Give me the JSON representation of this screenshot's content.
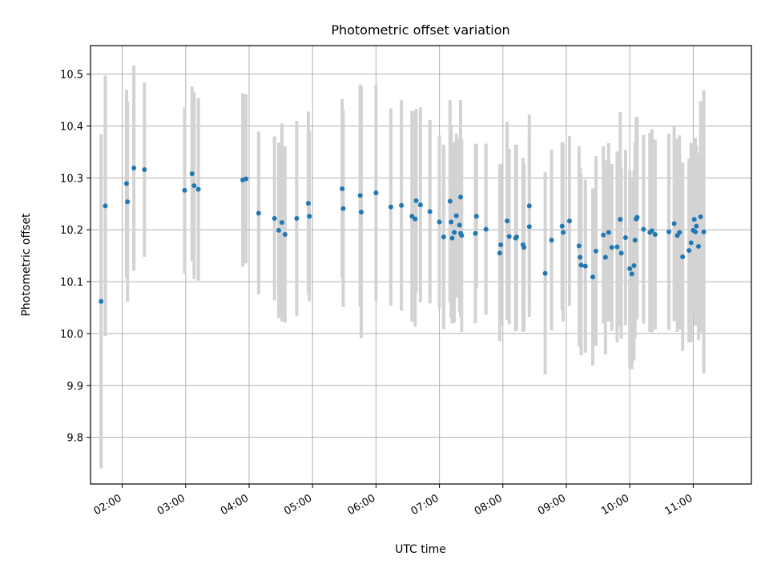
{
  "chart_data": {
    "type": "scatter",
    "title": "Photometric offset variation",
    "xlabel": "UTC time",
    "ylabel": "Photometric offset",
    "xlim": [
      "01:30",
      "11:55"
    ],
    "ylim": [
      9.71,
      10.555
    ],
    "x_ticks": [
      "02:00",
      "03:00",
      "04:00",
      "05:00",
      "06:00",
      "07:00",
      "08:00",
      "09:00",
      "10:00",
      "11:00"
    ],
    "y_ticks": [
      9.8,
      9.9,
      10.0,
      10.1,
      10.2,
      10.3,
      10.4,
      10.5
    ],
    "grid": true,
    "legend": "none",
    "colors": {
      "points": "#1f77b4",
      "error_bars": "#d3d3d3"
    },
    "series": [
      {
        "x": [
          "01:40",
          "01:44",
          "02:04",
          "02:05",
          "02:11",
          "02:21",
          "02:59",
          "03:06",
          "03:08",
          "03:12",
          "03:54",
          "03:57",
          "04:09",
          "04:24",
          "04:28",
          "04:31",
          "04:34",
          "04:45",
          "04:56",
          "04:57",
          "05:28",
          "05:29",
          "05:45",
          "05:46",
          "06:00",
          "06:14",
          "06:24",
          "06:34",
          "06:37",
          "06:38",
          "06:42",
          "06:51",
          "07:00",
          "07:04",
          "07:10",
          "07:11",
          "07:12",
          "07:14",
          "07:16",
          "07:19",
          "07:20",
          "07:20",
          "07:21",
          "07:34",
          "07:35",
          "07:44",
          "07:57",
          "07:58",
          "08:04",
          "08:06",
          "08:12",
          "08:13",
          "08:19",
          "08:20",
          "08:25",
          "08:25",
          "08:40",
          "08:46",
          "08:56",
          "08:57",
          "09:03",
          "09:12",
          "09:13",
          "09:14",
          "09:18",
          "09:25",
          "09:28",
          "09:35",
          "09:37",
          "09:40",
          "09:43",
          "09:48",
          "09:51",
          "09:52",
          "09:56",
          "10:00",
          "10:02",
          "10:04",
          "10:05",
          "10:06",
          "10:07",
          "10:13",
          "10:19",
          "10:21",
          "10:24",
          "10:37",
          "10:42",
          "10:45",
          "10:47",
          "10:50",
          "10:56",
          "10:58",
          "11:00",
          "11:01",
          "11:02",
          "11:03",
          "11:05",
          "11:07",
          "11:10"
        ],
        "y": [
          10.062,
          10.246,
          10.289,
          10.254,
          10.319,
          10.316,
          10.276,
          10.308,
          10.285,
          10.278,
          10.296,
          10.298,
          10.232,
          10.222,
          10.199,
          10.214,
          10.191,
          10.222,
          10.251,
          10.226,
          10.279,
          10.241,
          10.266,
          10.234,
          10.271,
          10.244,
          10.247,
          10.226,
          10.221,
          10.256,
          10.248,
          10.235,
          10.215,
          10.186,
          10.255,
          10.215,
          10.184,
          10.195,
          10.227,
          10.209,
          10.263,
          10.193,
          10.189,
          10.193,
          10.226,
          10.201,
          10.155,
          10.171,
          10.217,
          10.187,
          10.184,
          10.186,
          10.171,
          10.166,
          10.206,
          10.246,
          10.116,
          10.18,
          10.207,
          10.195,
          10.217,
          10.169,
          10.147,
          10.132,
          10.13,
          10.109,
          10.159,
          10.19,
          10.147,
          10.195,
          10.166,
          10.167,
          10.22,
          10.155,
          10.185,
          10.125,
          10.115,
          10.131,
          10.18,
          10.221,
          10.224,
          10.201,
          10.195,
          10.198,
          10.191,
          10.196,
          10.212,
          10.189,
          10.195,
          10.148,
          10.16,
          10.175,
          10.199,
          10.22,
          10.196,
          10.207,
          10.168,
          10.225,
          10.196
        ],
        "err": [
          0.322,
          0.251,
          0.181,
          0.193,
          0.198,
          0.168,
          0.16,
          0.168,
          0.18,
          0.176,
          0.167,
          0.163,
          0.157,
          0.158,
          0.169,
          0.191,
          0.17,
          0.188,
          0.177,
          0.164,
          0.173,
          0.19,
          0.214,
          0.243,
          0.208,
          0.19,
          0.203,
          0.203,
          0.208,
          0.177,
          0.188,
          0.177,
          0.167,
          0.178,
          0.195,
          0.184,
          0.165,
          0.174,
          0.158,
          0.167,
          0.187,
          0.161,
          0.186,
          0.173,
          0.139,
          0.165,
          0.17,
          0.156,
          0.191,
          0.169,
          0.18,
          0.178,
          0.168,
          0.161,
          0.174,
          0.176,
          0.195,
          0.174,
          0.162,
          0.172,
          0.164,
          0.192,
          0.173,
          0.174,
          0.167,
          0.171,
          0.183,
          0.171,
          0.187,
          0.172,
          0.161,
          0.184,
          0.207,
          0.165,
          0.169,
          0.19,
          0.184,
          0.183,
          0.188,
          0.196,
          0.194,
          0.182,
          0.192,
          0.196,
          0.183,
          0.189,
          0.188,
          0.186,
          0.187,
          0.182,
          0.177,
          0.192,
          0.165,
          0.152,
          0.181,
          0.156,
          0.18,
          0.223,
          0.273
        ]
      }
    ]
  }
}
